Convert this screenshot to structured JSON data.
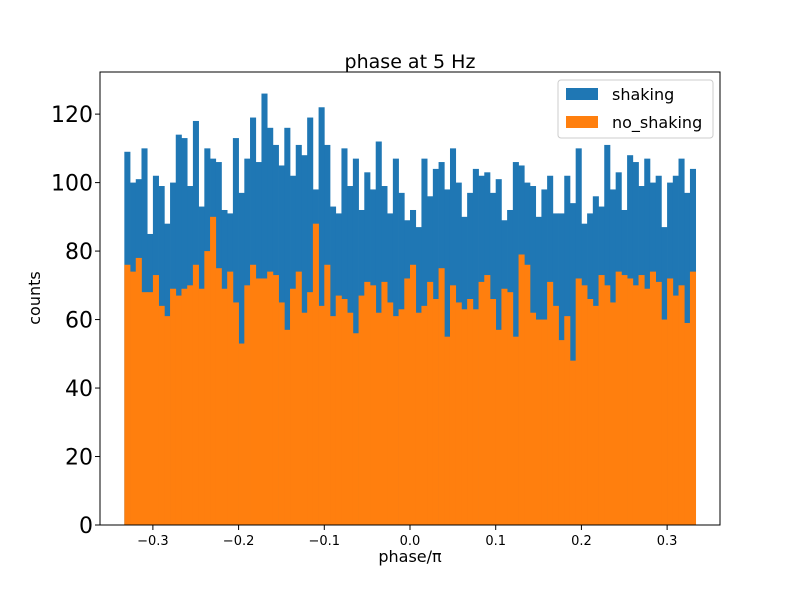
{
  "chart_data": {
    "type": "bar",
    "title": "phase at 5 Hz",
    "xlabel": "phase/π",
    "ylabel": "counts",
    "xlim": [
      -0.3617,
      0.3617
    ],
    "ylim": [
      0,
      132.3
    ],
    "xticks": [
      -0.3,
      -0.2,
      -0.1,
      0.0,
      0.1,
      0.2,
      0.3
    ],
    "xtick_labels": [
      "−0.3",
      "−0.2",
      "−0.1",
      "0.0",
      "0.1",
      "0.2",
      "0.3"
    ],
    "yticks": [
      0,
      20,
      40,
      60,
      80,
      100,
      120
    ],
    "ytick_labels": [
      "0",
      "20",
      "40",
      "60",
      "80",
      "100",
      "120"
    ],
    "bin_range": [
      -0.3333,
      0.3333
    ],
    "bins": 100,
    "grid": false,
    "legend": "upper right",
    "series": [
      {
        "name": "shaking",
        "color": "#1f77b4",
        "values": [
          109,
          100,
          101,
          110,
          85,
          102,
          99,
          88,
          100,
          114,
          113,
          99,
          118,
          93,
          110,
          107,
          106,
          92,
          91,
          113,
          97,
          107,
          119,
          106,
          126,
          116,
          111,
          105,
          116,
          102,
          111,
          108,
          119,
          98,
          122,
          111,
          93,
          91,
          110,
          99,
          107,
          92,
          103,
          98,
          112,
          99,
          91,
          107,
          97,
          89,
          92,
          87,
          107,
          96,
          104,
          106,
          98,
          110,
          100,
          90,
          97,
          104,
          102,
          103,
          97,
          101,
          89,
          92,
          106,
          105,
          100,
          99,
          90,
          98,
          102,
          91,
          91,
          102,
          94,
          110,
          88,
          91,
          96,
          93,
          111,
          98,
          103,
          92,
          108,
          106,
          99,
          107,
          100,
          102,
          87,
          100,
          102,
          107,
          97,
          104
        ]
      },
      {
        "name": "no_shaking",
        "color": "#ff7f0e",
        "values": [
          76,
          74,
          78,
          68,
          68,
          73,
          64,
          61,
          69,
          67,
          69,
          70,
          76,
          69,
          80,
          90,
          75,
          69,
          74,
          65,
          53,
          70,
          76,
          72,
          72,
          74,
          73,
          65,
          57,
          69,
          74,
          62,
          68,
          88,
          64,
          76,
          61,
          67,
          66,
          62,
          56,
          67,
          71,
          70,
          62,
          71,
          65,
          61,
          63,
          72,
          76,
          62,
          64,
          71,
          66,
          75,
          55,
          70,
          65,
          63,
          66,
          63,
          71,
          73,
          66,
          57,
          69,
          68,
          55,
          79,
          76,
          62,
          60,
          60,
          71,
          64,
          54,
          61,
          48,
          72,
          70,
          66,
          64,
          73,
          70,
          65,
          74,
          73,
          72,
          70,
          73,
          69,
          74,
          71,
          60,
          72,
          67,
          70,
          59,
          74
        ]
      }
    ]
  }
}
